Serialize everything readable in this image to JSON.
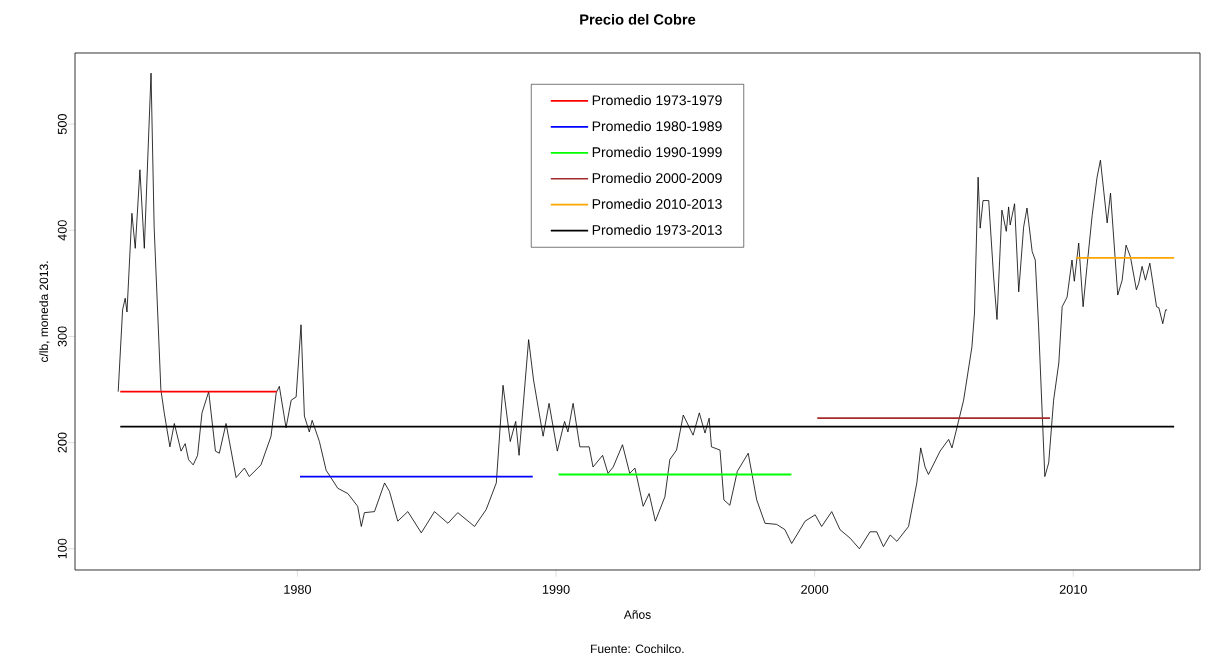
{
  "chart_data": {
    "type": "line",
    "title": "Precio del Cobre",
    "xlabel": "Años",
    "ylabel": "c/lb, moneda 2013.",
    "annotations": [
      "Fuente: Cochilco."
    ],
    "xlim": [
      1971.4,
      2014.9
    ],
    "ylim": [
      80,
      567
    ],
    "xticks": [
      1980,
      1990,
      2000,
      2010
    ],
    "yticks": [
      100,
      200,
      300,
      400,
      500
    ],
    "legend": "top",
    "marker": "none",
    "line_style": "solid",
    "series": [
      {
        "color": "#000000",
        "x": [
          1973.07,
          1973.24,
          1973.34,
          1973.41,
          1973.6,
          1973.73,
          1973.91,
          1974.08,
          1974.34,
          1974.46,
          1974.72,
          1974.85,
          1975.07,
          1975.24,
          1975.5,
          1975.66,
          1975.79,
          1975.97,
          1976.14,
          1976.31,
          1976.57,
          1976.83,
          1976.98,
          1977.24,
          1977.63,
          1977.95,
          1978.14,
          1978.59,
          1978.98,
          1979.18,
          1979.3,
          1979.56,
          1979.76,
          1979.95,
          1980.14,
          1980.27,
          1980.46,
          1980.57,
          1980.85,
          1981.11,
          1981.56,
          1981.95,
          1982.33,
          1982.47,
          1982.59,
          1982.98,
          1983.37,
          1983.56,
          1983.88,
          1984.27,
          1984.79,
          1985.3,
          1985.82,
          1986.2,
          1986.85,
          1987.3,
          1987.69,
          1987.95,
          1988.23,
          1988.44,
          1988.57,
          1988.94,
          1989.13,
          1989.5,
          1989.73,
          1990.05,
          1990.33,
          1990.46,
          1990.66,
          1990.92,
          1991.28,
          1991.43,
          1991.8,
          1992.01,
          1992.21,
          1992.57,
          1992.85,
          1993.05,
          1993.37,
          1993.6,
          1993.84,
          1994.21,
          1994.4,
          1994.66,
          1994.92,
          1995.3,
          1995.54,
          1995.76,
          1995.92,
          1996.01,
          1996.34,
          1996.49,
          1996.72,
          1997.01,
          1997.43,
          1997.76,
          1998.08,
          1998.53,
          1998.85,
          1999.11,
          1999.31,
          1999.63,
          2000.02,
          2000.27,
          2000.66,
          2000.98,
          2001.37,
          2001.73,
          2002.14,
          2002.4,
          2002.66,
          2002.92,
          2003.18,
          2003.63,
          2003.95,
          2004.1,
          2004.27,
          2004.4,
          2004.85,
          2005.18,
          2005.31,
          2005.76,
          2006.08,
          2006.18,
          2006.32,
          2006.4,
          2006.51,
          2006.73,
          2006.92,
          2007.05,
          2007.24,
          2007.41,
          2007.5,
          2007.56,
          2007.73,
          2007.89,
          2008.08,
          2008.21,
          2008.41,
          2008.53,
          2008.66,
          2008.9,
          2009.05,
          2009.24,
          2009.44,
          2009.57,
          2009.76,
          2009.95,
          2010.04,
          2010.21,
          2010.38,
          2010.53,
          2010.73,
          2010.92,
          2011.05,
          2011.31,
          2011.44,
          2011.72,
          2011.89,
          2012.04,
          2012.21,
          2012.44,
          2012.53,
          2012.66,
          2012.79,
          2012.96,
          2013.22,
          2013.31,
          2013.46,
          2013.57,
          2013.63
        ],
        "values": [
          248,
          325,
          336,
          323,
          416,
          383,
          457,
          383,
          548,
          403,
          250,
          228,
          196,
          218,
          192,
          199,
          184,
          179,
          188,
          228,
          248,
          192,
          190,
          218,
          167,
          176,
          168,
          179,
          206,
          247,
          253,
          214,
          240,
          243,
          311,
          225,
          210,
          221,
          201,
          174,
          157,
          152,
          140,
          121,
          134,
          135,
          162,
          154,
          126,
          135,
          115,
          135,
          124,
          134,
          121,
          137,
          162,
          254,
          201,
          220,
          188,
          297,
          259,
          206,
          237,
          192,
          220,
          210,
          237,
          196,
          196,
          177,
          188,
          171,
          177,
          198,
          171,
          176,
          140,
          152,
          126,
          149,
          184,
          193,
          226,
          207,
          228,
          209,
          223,
          196,
          193,
          146,
          141,
          173,
          190,
          146,
          124,
          123,
          118,
          105,
          113,
          126,
          132,
          121,
          135,
          118,
          110,
          100,
          116,
          116,
          102,
          113,
          107,
          121,
          162,
          195,
          177,
          170,
          192,
          203,
          195,
          240,
          290,
          322,
          450,
          402,
          428,
          428,
          356,
          316,
          419,
          399,
          422,
          405,
          425,
          342,
          403,
          421,
          380,
          372,
          309,
          168,
          181,
          240,
          275,
          328,
          337,
          372,
          352,
          388,
          328,
          366,
          414,
          450,
          466,
          407,
          435,
          339,
          353,
          386,
          375,
          344,
          350,
          366,
          353,
          369,
          328,
          327,
          312,
          325,
          325
        ]
      },
      {
        "name": "Promedio 1973-1979",
        "color": "#ff0000",
        "x": [
          1973.15,
          1979.2
        ],
        "values": [
          248,
          248
        ]
      },
      {
        "name": "Promedio 1980-1989",
        "color": "#0000ff",
        "x": [
          1980.1,
          1989.1
        ],
        "values": [
          168,
          168
        ]
      },
      {
        "name": "Promedio 1990-1999",
        "color": "#00ff00",
        "x": [
          1990.1,
          1999.1
        ],
        "values": [
          170,
          170
        ]
      },
      {
        "name": "Promedio 2000-2009",
        "color": "#a52a2a",
        "x": [
          2000.1,
          2009.1
        ],
        "values": [
          223,
          223
        ]
      },
      {
        "name": "Promedio 2010-2013",
        "color": "#ffa500",
        "x": [
          2010.1,
          2013.9
        ],
        "values": [
          374,
          374
        ]
      },
      {
        "name": "Promedio 1973-2013",
        "color": "#000000",
        "x": [
          1973.15,
          2013.9
        ],
        "values": [
          215,
          215
        ]
      }
    ]
  }
}
